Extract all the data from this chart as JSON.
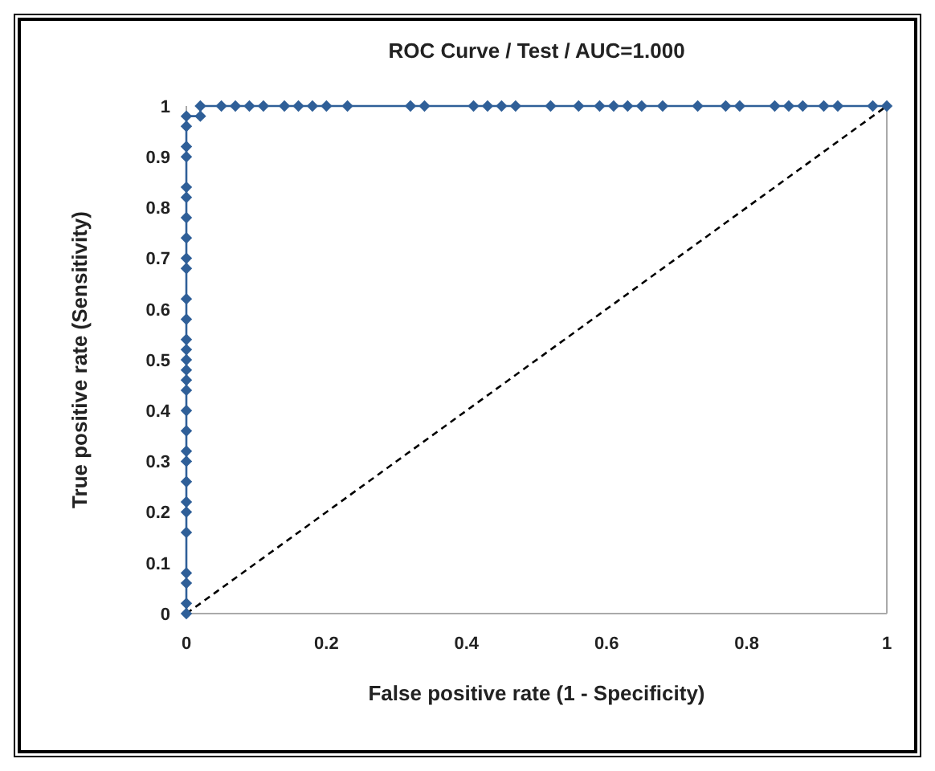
{
  "chart_data": {
    "type": "line",
    "title": "ROC Curve / Test / AUC=1.000",
    "xlabel": "False positive rate (1 - Specificity)",
    "ylabel": "True positive rate (Sensitivity)",
    "xlim": [
      0,
      1
    ],
    "ylim": [
      0,
      1
    ],
    "xticks": [
      0,
      0.2,
      0.4,
      0.6,
      0.8,
      1
    ],
    "yticks": [
      0,
      0.1,
      0.2,
      0.3,
      0.4,
      0.5,
      0.6,
      0.7,
      0.8,
      0.9,
      1
    ],
    "grid": false,
    "series": [
      {
        "color": "#2f5f98",
        "marker": "diamond",
        "line_style": "solid",
        "x": [
          0,
          0,
          0,
          0,
          0,
          0,
          0,
          0,
          0,
          0,
          0,
          0,
          0,
          0,
          0,
          0,
          0,
          0,
          0,
          0,
          0,
          0,
          0,
          0,
          0,
          0,
          0,
          0,
          0,
          0,
          0.02,
          0.02,
          0.05,
          0.07,
          0.09,
          0.11,
          0.14,
          0.16,
          0.18,
          0.2,
          0.23,
          0.32,
          0.34,
          0.41,
          0.43,
          0.45,
          0.47,
          0.52,
          0.56,
          0.59,
          0.61,
          0.63,
          0.65,
          0.68,
          0.73,
          0.77,
          0.79,
          0.84,
          0.86,
          0.88,
          0.91,
          0.93,
          0.98,
          1
        ],
        "values": [
          0,
          0.02,
          0.06,
          0.08,
          0.16,
          0.2,
          0.22,
          0.26,
          0.3,
          0.32,
          0.36,
          0.4,
          0.44,
          0.46,
          0.48,
          0.5,
          0.52,
          0.54,
          0.58,
          0.62,
          0.68,
          0.7,
          0.74,
          0.78,
          0.82,
          0.84,
          0.9,
          0.92,
          0.96,
          0.98,
          0.98,
          1,
          1,
          1,
          1,
          1,
          1,
          1,
          1,
          1,
          1,
          1,
          1,
          1,
          1,
          1,
          1,
          1,
          1,
          1,
          1,
          1,
          1,
          1,
          1,
          1,
          1,
          1,
          1,
          1,
          1,
          1,
          1,
          1
        ]
      },
      {
        "color": "#000000",
        "marker": "none",
        "line_style": "dashed",
        "x": [
          0,
          1
        ],
        "values": [
          0,
          1
        ]
      }
    ]
  }
}
